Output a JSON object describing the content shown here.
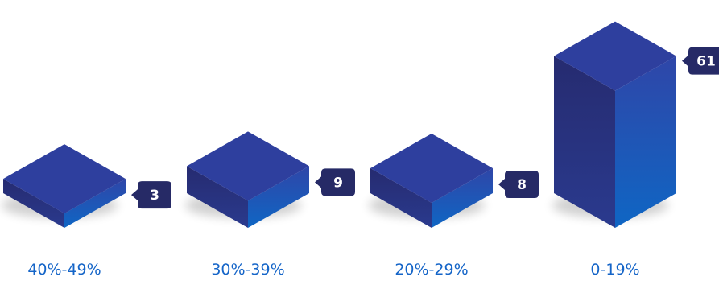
{
  "chart_data": {
    "type": "bar",
    "style": "isometric-3d",
    "categories": [
      "40%-49%",
      "30%-39%",
      "20%-29%",
      "0-19%"
    ],
    "values": [
      3,
      9,
      8,
      61
    ],
    "title": "",
    "xlabel": "",
    "ylabel": "",
    "grid": false,
    "legend": "none",
    "colors": {
      "top": "#2e3f9e",
      "left": "#262b70",
      "right_top": "#2f46a8",
      "right_bottom": "#0f66c4",
      "callout": "#262a66",
      "label": "#1565c8"
    }
  }
}
